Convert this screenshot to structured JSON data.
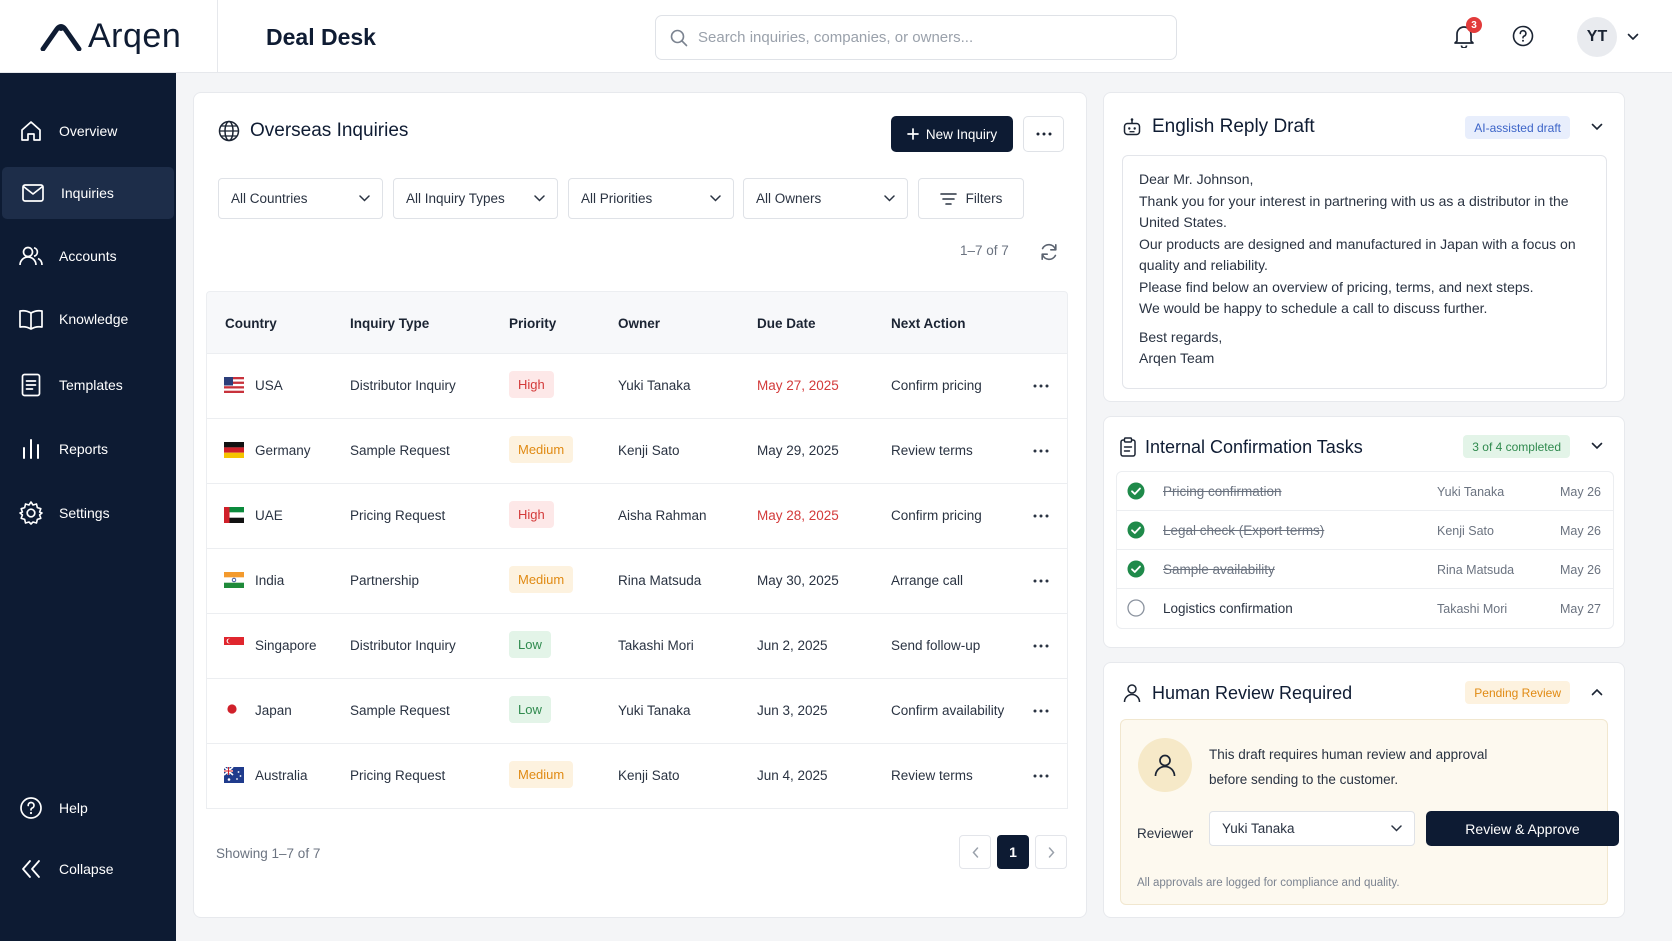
{
  "brand": {
    "name": "Arqen"
  },
  "header": {
    "title": "Deal Desk",
    "search_placeholder": "Search inquiries, companies, or owners...",
    "notification_count": "3",
    "user_initials": "YT"
  },
  "sidebar": {
    "items": [
      {
        "label": "Overview",
        "icon": "home-icon"
      },
      {
        "label": "Inquiries",
        "icon": "mail-icon",
        "active": true
      },
      {
        "label": "Accounts",
        "icon": "users-icon"
      },
      {
        "label": "Knowledge",
        "icon": "book-icon"
      },
      {
        "label": "Templates",
        "icon": "document-icon"
      },
      {
        "label": "Reports",
        "icon": "bar-chart-icon"
      },
      {
        "label": "Settings",
        "icon": "gear-icon"
      }
    ],
    "help_label": "Help",
    "collapse_label": "Collapse"
  },
  "inquiries": {
    "title": "Overseas Inquiries",
    "new_button": "New Inquiry",
    "filters": {
      "countries": "All Countries",
      "types": "All Inquiry Types",
      "priorities": "All Priorities",
      "owners": "All Owners",
      "filters_button": "Filters"
    },
    "range_label": "1–7 of 7",
    "columns": [
      "Country",
      "Inquiry Type",
      "Priority",
      "Owner",
      "Due Date",
      "Next Action"
    ],
    "rows": [
      {
        "country": "USA",
        "type": "Distributor Inquiry",
        "priority": "High",
        "owner": "Yuki Tanaka",
        "due": "May 27, 2025",
        "due_overdue": true,
        "action": "Confirm pricing"
      },
      {
        "country": "Germany",
        "type": "Sample Request",
        "priority": "Medium",
        "owner": "Kenji Sato",
        "due": "May 29, 2025",
        "due_overdue": false,
        "action": "Review terms"
      },
      {
        "country": "UAE",
        "type": "Pricing Request",
        "priority": "High",
        "owner": "Aisha Rahman",
        "due": "May 28, 2025",
        "due_overdue": true,
        "action": "Confirm pricing"
      },
      {
        "country": "India",
        "type": "Partnership",
        "priority": "Medium",
        "owner": "Rina Matsuda",
        "due": "May 30, 2025",
        "due_overdue": false,
        "action": "Arrange call"
      },
      {
        "country": "Singapore",
        "type": "Distributor Inquiry",
        "priority": "Low",
        "owner": "Takashi Mori",
        "due": "Jun 2, 2025",
        "due_overdue": false,
        "action": "Send follow-up"
      },
      {
        "country": "Japan",
        "type": "Sample Request",
        "priority": "Low",
        "owner": "Yuki Tanaka",
        "due": "Jun 3, 2025",
        "due_overdue": false,
        "action": "Confirm availability"
      },
      {
        "country": "Australia",
        "type": "Pricing Request",
        "priority": "Medium",
        "owner": "Kenji Sato",
        "due": "Jun 4, 2025",
        "due_overdue": false,
        "action": "Review terms"
      }
    ],
    "showing_label": "Showing 1–7 of 7",
    "current_page": "1"
  },
  "reply": {
    "title": "English Reply Draft",
    "badge": "AI-assisted draft",
    "lines": [
      "Dear Mr. Johnson,",
      "Thank you for your interest in partnering with us as a distributor in the United States.",
      "Our products are designed and manufactured in Japan with a focus on quality and reliability.",
      "Please find below an overview of pricing, terms, and next steps.",
      "We would be happy to schedule a call to discuss further.",
      "Best regards,",
      "Arqen Team"
    ]
  },
  "tasks": {
    "title": "Internal Confirmation Tasks",
    "badge": "3 of 4 completed",
    "items": [
      {
        "name": "Pricing confirmation",
        "owner": "Yuki Tanaka",
        "date": "May 26",
        "done": true
      },
      {
        "name": "Legal check (Export terms)",
        "owner": "Kenji Sato",
        "date": "May 26",
        "done": true
      },
      {
        "name": "Sample availability",
        "owner": "Rina Matsuda",
        "date": "May 26",
        "done": true
      },
      {
        "name": "Logistics confirmation",
        "owner": "Takashi Mori",
        "date": "May 27",
        "done": false
      }
    ]
  },
  "review": {
    "title": "Human Review Required",
    "badge": "Pending Review",
    "message_line1": "This draft requires human review and approval",
    "message_line2": "before sending to the customer.",
    "reviewer_label": "Reviewer",
    "reviewer_value": "Yuki Tanaka",
    "approve_button": "Review & Approve",
    "note": "All approvals are logged for compliance and quality."
  },
  "colors": {
    "sidebar_bg": "#0d1b33",
    "primary": "#0d1b33",
    "high": "#d33a3a",
    "medium": "#e08a13",
    "low": "#2f8a4e"
  }
}
